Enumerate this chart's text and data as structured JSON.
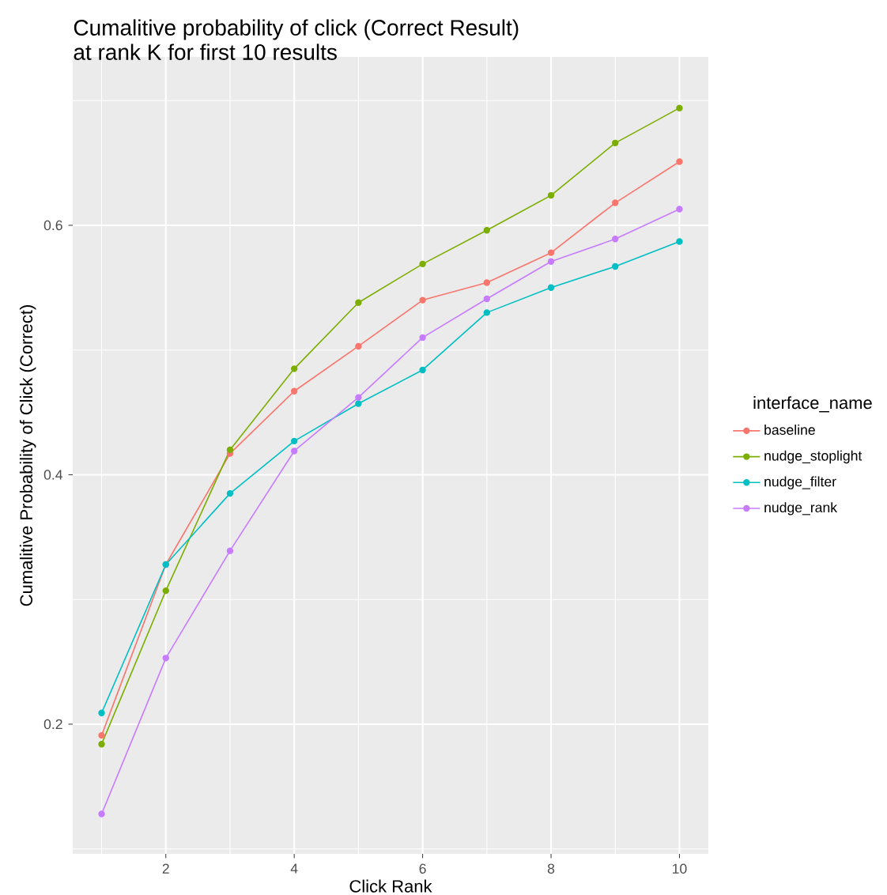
{
  "chart_data": {
    "type": "line",
    "title": "Cumalitive probability of click (Correct Result)\n at rank K for first  10  results",
    "xlabel": "Click Rank",
    "ylabel": "Cumalitive Probability of Click (Correct)",
    "legend_title": "interface_name",
    "x": [
      1,
      2,
      3,
      4,
      5,
      6,
      7,
      8,
      9,
      10
    ],
    "series": [
      {
        "name": "baseline",
        "color": "#f8766d",
        "values": [
          0.191,
          0.328,
          0.417,
          0.467,
          0.503,
          0.54,
          0.554,
          0.578,
          0.618,
          0.651
        ]
      },
      {
        "name": "nudge_stoplight",
        "color": "#7cae00",
        "values": [
          0.184,
          0.307,
          0.42,
          0.485,
          0.538,
          0.569,
          0.596,
          0.624,
          0.666,
          0.694
        ]
      },
      {
        "name": "nudge_filter",
        "color": "#00bfc4",
        "values": [
          0.209,
          0.328,
          0.385,
          0.427,
          0.457,
          0.484,
          0.53,
          0.55,
          0.567,
          0.587
        ]
      },
      {
        "name": "nudge_rank",
        "color": "#c77cff",
        "values": [
          0.128,
          0.253,
          0.339,
          0.419,
          0.462,
          0.51,
          0.541,
          0.571,
          0.589,
          0.613
        ]
      }
    ],
    "xlim": [
      0.55,
      10.45
    ],
    "ylim": [
      0.096,
      0.735
    ],
    "xticks": [
      2,
      4,
      6,
      8,
      10
    ],
    "yticks": [
      0.2,
      0.4,
      0.6
    ],
    "grid": true,
    "legend": "right",
    "marker": "circle",
    "line_style": "solid"
  }
}
